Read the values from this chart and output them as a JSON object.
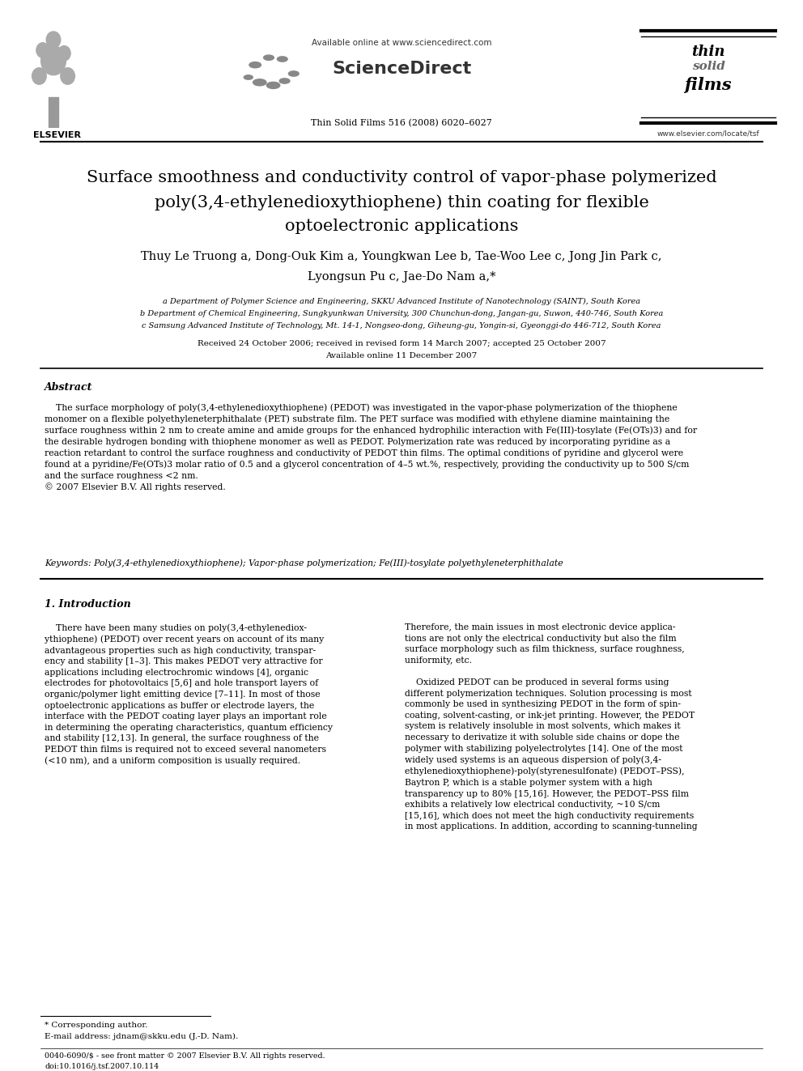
{
  "bg_color": "#ffffff",
  "available_online": "Available online at www.sciencedirect.com",
  "sciencedirect": "ScienceDirect",
  "journal_name": "Thin Solid Films 516 (2008) 6020–6027",
  "www_elsevier": "www.elsevier.com/locate/tsf",
  "title_line1": "Surface smoothness and conductivity control of vapor-phase polymerized",
  "title_line2": "poly(3,4-ethylenedioxythiophene) thin coating for flexible",
  "title_line3": "optoelectronic applications",
  "authors1": "Thuy Le Truong a, Dong-Ouk Kim a, Youngkwan Lee b, Tae-Woo Lee c, Jong Jin Park c,",
  "authors2": "Lyongsun Pu c, Jae-Do Nam a,*",
  "affil_a": "a Department of Polymer Science and Engineering, SKKU Advanced Institute of Nanotechnology (SAINT), South Korea",
  "affil_b": "b Department of Chemical Engineering, Sungkyunkwan University, 300 Chunchun-dong, Jangan-gu, Suwon, 440-746, South Korea",
  "affil_c": "c Samsung Advanced Institute of Technology, Mt. 14-1, Nongseo-dong, Giheung-gu, Yongin-si, Gyeonggi-do 446-712, South Korea",
  "received": "Received 24 October 2006; received in revised form 14 March 2007; accepted 25 October 2007",
  "available": "Available online 11 December 2007",
  "abstract_title": "Abstract",
  "abstract_body": "    The surface morphology of poly(3,4-ethylenedioxythiophene) (PEDOT) was investigated in the vapor-phase polymerization of the thiophene\nmonomer on a flexible polyethyleneterphithalate (PET) substrate film. The PET surface was modified with ethylene diamine maintaining the\nsurface roughness within 2 nm to create amine and amide groups for the enhanced hydrophilic interaction with Fe(III)-tosylate (Fe(OTs)3) and for\nthe desirable hydrogen bonding with thiophene monomer as well as PEDOT. Polymerization rate was reduced by incorporating pyridine as a\nreaction retardant to control the surface roughness and conductivity of PEDOT thin films. The optimal conditions of pyridine and glycerol were\nfound at a pyridine/Fe(OTs)3 molar ratio of 0.5 and a glycerol concentration of 4–5 wt.%, respectively, providing the conductivity up to 500 S/cm\nand the surface roughness <2 nm.\n© 2007 Elsevier B.V. All rights reserved.",
  "keywords": "Keywords: Poly(3,4-ethylenedioxythiophene); Vapor-phase polymerization; Fe(III)-tosylate polyethyleneterphithalate",
  "intro_title": "1. Introduction",
  "intro_col1": "    There have been many studies on poly(3,4-ethylenediox-\nythiophene) (PEDOT) over recent years on account of its many\nadvantageous properties such as high conductivity, transpar-\nency and stability [1–3]. This makes PEDOT very attractive for\napplications including electrochromic windows [4], organic\nelectrodes for photovoltaics [5,6] and hole transport layers of\norganic/polymer light emitting device [7–11]. In most of those\noptoelectronic applications as buffer or electrode layers, the\ninterface with the PEDOT coating layer plays an important role\nin determining the operating characteristics, quantum efficiency\nand stability [12,13]. In general, the surface roughness of the\nPEDOT thin films is required not to exceed several nanometers\n(<10 nm), and a uniform composition is usually required.",
  "intro_col2": "Therefore, the main issues in most electronic device applica-\ntions are not only the electrical conductivity but also the film\nsurface morphology such as film thickness, surface roughness,\nuniformity, etc.\n\n    Oxidized PEDOT can be produced in several forms using\ndifferent polymerization techniques. Solution processing is most\ncommonly be used in synthesizing PEDOT in the form of spin-\ncoating, solvent-casting, or ink-jet printing. However, the PEDOT\nsystem is relatively insoluble in most solvents, which makes it\nnecessary to derivatize it with soluble side chains or dope the\npolymer with stabilizing polyelectrolytes [14]. One of the most\nwidely used systems is an aqueous dispersion of poly(3,4-\nethylenedioxythiophene)-poly(styrenesulfonate) (PEDOT–PSS),\nBaytron P, which is a stable polymer system with a high\ntransparency up to 80% [15,16]. However, the PEDOT–PSS film\nexhibits a relatively low electrical conductivity, ~10 S/cm\n[15,16], which does not meet the high conductivity requirements\nin most applications. In addition, according to scanning-tunneling",
  "footnote_star": "* Corresponding author.",
  "footnote_email": "E-mail address: jdnam@skku.edu (J.-D. Nam).",
  "bottom1": "0040-6090/$ - see front matter © 2007 Elsevier B.V. All rights reserved.",
  "bottom2": "doi:10.1016/j.tsf.2007.10.114",
  "elsevier_label": "ELSEVIER"
}
